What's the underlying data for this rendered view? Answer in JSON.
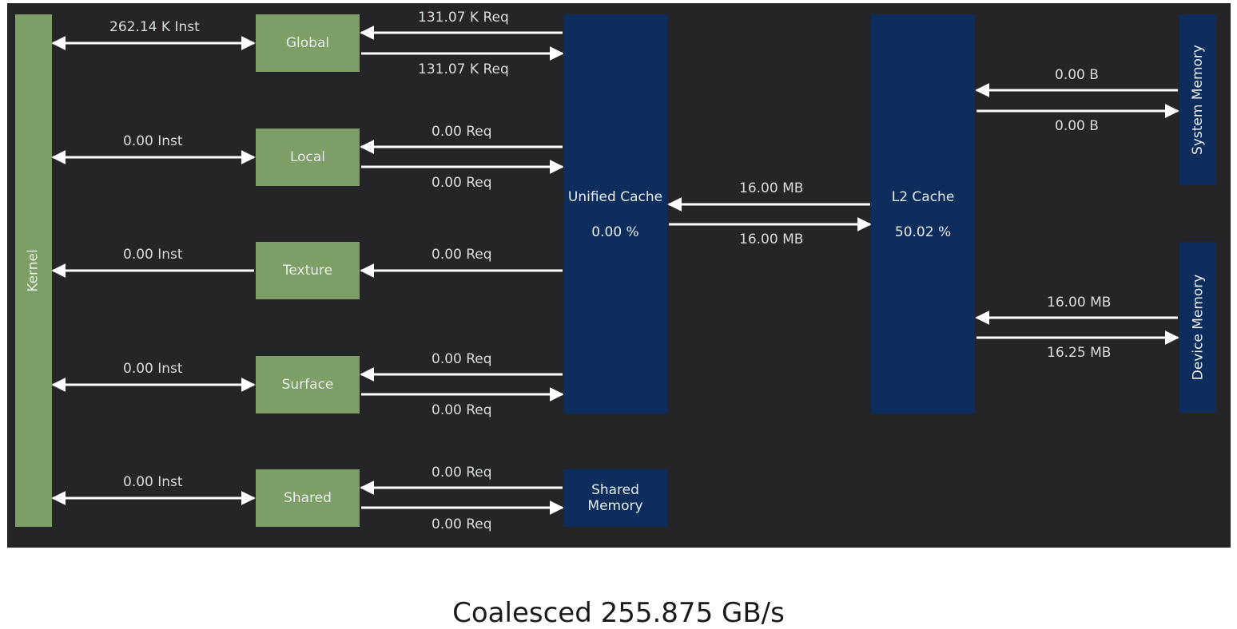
{
  "kernel": {
    "label": "Kernel"
  },
  "rows": [
    {
      "name": "Global",
      "inst": "262.14 K Inst",
      "req_to": "131.07 K Req",
      "req_from": "131.07 K Req"
    },
    {
      "name": "Local",
      "inst": "0.00 Inst",
      "req_to": "0.00 Req",
      "req_from": "0.00 Req"
    },
    {
      "name": "Texture",
      "inst": "0.00 Inst",
      "req_to": "0.00 Req"
    },
    {
      "name": "Surface",
      "inst": "0.00 Inst",
      "req_to": "0.00 Req",
      "req_from": "0.00 Req"
    },
    {
      "name": "Shared",
      "inst": "0.00 Inst",
      "req_to": "0.00 Req",
      "req_from": "0.00 Req"
    }
  ],
  "unified_cache": {
    "label": "Unified Cache",
    "hit_rate": "0.00 %"
  },
  "shared_memory": {
    "label": "Shared Memory"
  },
  "l2_cache": {
    "label": "L2 Cache",
    "hit_rate": "50.02 %"
  },
  "unified_l2": {
    "top": "16.00 MB",
    "bottom": "16.00 MB"
  },
  "system_memory": {
    "label": "System Memory",
    "top": "0.00 B",
    "bottom": "0.00 B"
  },
  "device_memory": {
    "label": "Device Memory",
    "top": "16.00 MB",
    "bottom": "16.25 MB"
  },
  "caption": "Coalesced 255.875 GB/s",
  "colors": {
    "panel": "#252527",
    "green": "#7d9e64",
    "navy": "#0d2d5c",
    "arrow": "#ffffff"
  }
}
